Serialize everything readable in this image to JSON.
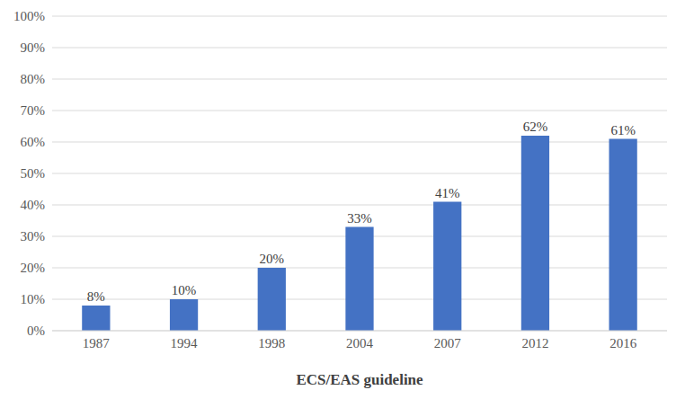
{
  "chart_data": {
    "type": "bar",
    "x_label": "ECS/EAS guideline",
    "categories": [
      "1987",
      "1994",
      "1998",
      "2004",
      "2007",
      "2012",
      "2016"
    ],
    "values": [
      8,
      10,
      20,
      33,
      41,
      62,
      61
    ],
    "value_labels": [
      "8%",
      "10%",
      "20%",
      "33%",
      "41%",
      "62%",
      "61%"
    ],
    "data_labels": true,
    "color": "#4472c4",
    "ylim": [
      0,
      100
    ],
    "yticks": [
      {
        "value": 0,
        "label": "0%"
      },
      {
        "value": 10,
        "label": "10%"
      },
      {
        "value": 20,
        "label": "20%"
      },
      {
        "value": 30,
        "label": "30%"
      },
      {
        "value": 40,
        "label": "40%"
      },
      {
        "value": 50,
        "label": "50%"
      },
      {
        "value": 60,
        "label": "60%"
      },
      {
        "value": 70,
        "label": "70%"
      },
      {
        "value": 80,
        "label": "80%"
      },
      {
        "value": 90,
        "label": "90%"
      },
      {
        "value": 100,
        "label": "100%"
      }
    ],
    "grid": true
  }
}
